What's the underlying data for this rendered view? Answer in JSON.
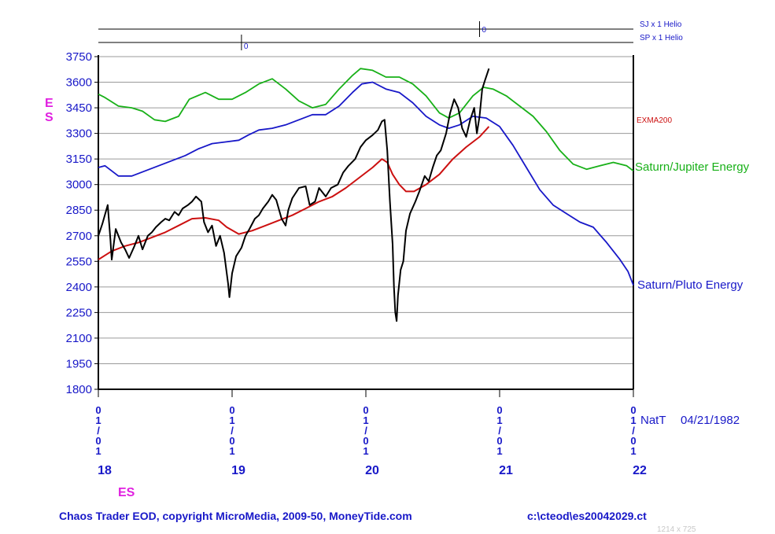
{
  "chart_data": {
    "type": "line",
    "y_axis_label": "ES",
    "x_axis_label": "ES",
    "ylim": [
      1800,
      3750
    ],
    "y_ticks": [
      3750,
      3600,
      3450,
      3300,
      3150,
      3000,
      2850,
      2700,
      2550,
      2400,
      2250,
      2100,
      1950,
      1800
    ],
    "x_date_ticks": [
      {
        "x": 2018.0,
        "label": "01/01",
        "year": "18"
      },
      {
        "x": 2019.0,
        "label": "01/01",
        "year": "19"
      },
      {
        "x": 2020.0,
        "label": "01/01",
        "year": "20"
      },
      {
        "x": 2021.0,
        "label": "01/01",
        "year": "21"
      },
      {
        "x": 2022.0,
        "label": "01/01",
        "year": "22"
      }
    ],
    "natal": {
      "label": "NatT",
      "date": "04/21/1982"
    },
    "top_indicators": [
      {
        "label": "SJ x 1 Helio",
        "marker_x": 2020.85,
        "marker_text": "0"
      },
      {
        "label": "SP x 1 Helio",
        "marker_x": 2019.07,
        "marker_text": "0"
      }
    ],
    "series": [
      {
        "name": "ES",
        "color": "#000000",
        "points": [
          [
            2018.0,
            2700
          ],
          [
            2018.03,
            2770
          ],
          [
            2018.07,
            2880
          ],
          [
            2018.09,
            2680
          ],
          [
            2018.1,
            2560
          ],
          [
            2018.13,
            2740
          ],
          [
            2018.17,
            2660
          ],
          [
            2018.2,
            2620
          ],
          [
            2018.23,
            2570
          ],
          [
            2018.27,
            2640
          ],
          [
            2018.3,
            2700
          ],
          [
            2018.33,
            2620
          ],
          [
            2018.37,
            2700
          ],
          [
            2018.4,
            2720
          ],
          [
            2018.43,
            2750
          ],
          [
            2018.47,
            2780
          ],
          [
            2018.5,
            2800
          ],
          [
            2018.53,
            2790
          ],
          [
            2018.57,
            2840
          ],
          [
            2018.6,
            2820
          ],
          [
            2018.63,
            2860
          ],
          [
            2018.67,
            2880
          ],
          [
            2018.7,
            2900
          ],
          [
            2018.73,
            2930
          ],
          [
            2018.77,
            2900
          ],
          [
            2018.79,
            2780
          ],
          [
            2018.82,
            2720
          ],
          [
            2018.85,
            2760
          ],
          [
            2018.88,
            2640
          ],
          [
            2018.91,
            2700
          ],
          [
            2018.94,
            2600
          ],
          [
            2018.97,
            2420
          ],
          [
            2018.98,
            2340
          ],
          [
            2019.0,
            2480
          ],
          [
            2019.03,
            2580
          ],
          [
            2019.07,
            2630
          ],
          [
            2019.1,
            2700
          ],
          [
            2019.13,
            2740
          ],
          [
            2019.17,
            2800
          ],
          [
            2019.2,
            2820
          ],
          [
            2019.23,
            2860
          ],
          [
            2019.27,
            2900
          ],
          [
            2019.3,
            2940
          ],
          [
            2019.33,
            2910
          ],
          [
            2019.37,
            2800
          ],
          [
            2019.4,
            2760
          ],
          [
            2019.42,
            2850
          ],
          [
            2019.45,
            2920
          ],
          [
            2019.5,
            2980
          ],
          [
            2019.55,
            2990
          ],
          [
            2019.58,
            2880
          ],
          [
            2019.62,
            2900
          ],
          [
            2019.65,
            2980
          ],
          [
            2019.7,
            2930
          ],
          [
            2019.74,
            2980
          ],
          [
            2019.79,
            3000
          ],
          [
            2019.83,
            3070
          ],
          [
            2019.87,
            3110
          ],
          [
            2019.92,
            3150
          ],
          [
            2019.96,
            3220
          ],
          [
            2020.0,
            3260
          ],
          [
            2020.05,
            3290
          ],
          [
            2020.09,
            3320
          ],
          [
            2020.12,
            3370
          ],
          [
            2020.14,
            3380
          ],
          [
            2020.16,
            3200
          ],
          [
            2020.18,
            2900
          ],
          [
            2020.2,
            2650
          ],
          [
            2020.21,
            2400
          ],
          [
            2020.22,
            2250
          ],
          [
            2020.23,
            2200
          ],
          [
            2020.24,
            2350
          ],
          [
            2020.26,
            2500
          ],
          [
            2020.28,
            2550
          ],
          [
            2020.3,
            2730
          ],
          [
            2020.33,
            2830
          ],
          [
            2020.37,
            2900
          ],
          [
            2020.4,
            2960
          ],
          [
            2020.44,
            3050
          ],
          [
            2020.47,
            3020
          ],
          [
            2020.5,
            3100
          ],
          [
            2020.53,
            3170
          ],
          [
            2020.56,
            3200
          ],
          [
            2020.6,
            3300
          ],
          [
            2020.63,
            3420
          ],
          [
            2020.66,
            3500
          ],
          [
            2020.69,
            3450
          ],
          [
            2020.72,
            3330
          ],
          [
            2020.75,
            3280
          ],
          [
            2020.78,
            3380
          ],
          [
            2020.81,
            3450
          ],
          [
            2020.83,
            3300
          ],
          [
            2020.85,
            3400
          ],
          [
            2020.87,
            3560
          ],
          [
            2020.89,
            3610
          ],
          [
            2020.92,
            3680
          ]
        ]
      },
      {
        "name": "EXMA200",
        "color": "#cc1010",
        "points": [
          [
            2018.0,
            2560
          ],
          [
            2018.1,
            2610
          ],
          [
            2018.2,
            2640
          ],
          [
            2018.3,
            2660
          ],
          [
            2018.4,
            2690
          ],
          [
            2018.5,
            2720
          ],
          [
            2018.6,
            2760
          ],
          [
            2018.7,
            2800
          ],
          [
            2018.8,
            2805
          ],
          [
            2018.9,
            2790
          ],
          [
            2018.96,
            2750
          ],
          [
            2019.05,
            2710
          ],
          [
            2019.15,
            2730
          ],
          [
            2019.25,
            2760
          ],
          [
            2019.35,
            2790
          ],
          [
            2019.45,
            2820
          ],
          [
            2019.55,
            2860
          ],
          [
            2019.65,
            2900
          ],
          [
            2019.75,
            2930
          ],
          [
            2019.85,
            2980
          ],
          [
            2019.95,
            3040
          ],
          [
            2020.05,
            3100
          ],
          [
            2020.12,
            3150
          ],
          [
            2020.16,
            3130
          ],
          [
            2020.2,
            3060
          ],
          [
            2020.25,
            3000
          ],
          [
            2020.3,
            2960
          ],
          [
            2020.36,
            2960
          ],
          [
            2020.45,
            3000
          ],
          [
            2020.55,
            3060
          ],
          [
            2020.65,
            3150
          ],
          [
            2020.75,
            3220
          ],
          [
            2020.85,
            3280
          ],
          [
            2020.92,
            3340
          ]
        ]
      },
      {
        "name": "Saturn/Jupiter Energy",
        "color": "#18b018",
        "points": [
          [
            2018.0,
            3530
          ],
          [
            2018.05,
            3510
          ],
          [
            2018.15,
            3460
          ],
          [
            2018.25,
            3450
          ],
          [
            2018.33,
            3430
          ],
          [
            2018.42,
            3380
          ],
          [
            2018.5,
            3370
          ],
          [
            2018.6,
            3400
          ],
          [
            2018.68,
            3500
          ],
          [
            2018.8,
            3540
          ],
          [
            2018.9,
            3500
          ],
          [
            2019.0,
            3500
          ],
          [
            2019.1,
            3540
          ],
          [
            2019.2,
            3590
          ],
          [
            2019.3,
            3620
          ],
          [
            2019.4,
            3560
          ],
          [
            2019.5,
            3490
          ],
          [
            2019.6,
            3450
          ],
          [
            2019.7,
            3470
          ],
          [
            2019.8,
            3560
          ],
          [
            2019.9,
            3640
          ],
          [
            2019.96,
            3680
          ],
          [
            2020.05,
            3670
          ],
          [
            2020.15,
            3630
          ],
          [
            2020.25,
            3630
          ],
          [
            2020.35,
            3590
          ],
          [
            2020.45,
            3520
          ],
          [
            2020.55,
            3420
          ],
          [
            2020.62,
            3390
          ],
          [
            2020.7,
            3420
          ],
          [
            2020.8,
            3520
          ],
          [
            2020.88,
            3570
          ],
          [
            2020.95,
            3560
          ],
          [
            2021.05,
            3520
          ],
          [
            2021.15,
            3460
          ],
          [
            2021.25,
            3400
          ],
          [
            2021.35,
            3310
          ],
          [
            2021.45,
            3200
          ],
          [
            2021.55,
            3120
          ],
          [
            2021.65,
            3090
          ],
          [
            2021.75,
            3110
          ],
          [
            2021.85,
            3130
          ],
          [
            2021.95,
            3110
          ],
          [
            2022.0,
            3080
          ]
        ]
      },
      {
        "name": "Saturn/Pluto Energy",
        "color": "#1818c8",
        "points": [
          [
            2018.0,
            3100
          ],
          [
            2018.05,
            3110
          ],
          [
            2018.1,
            3080
          ],
          [
            2018.15,
            3050
          ],
          [
            2018.25,
            3050
          ],
          [
            2018.35,
            3080
          ],
          [
            2018.45,
            3110
          ],
          [
            2018.55,
            3140
          ],
          [
            2018.65,
            3170
          ],
          [
            2018.75,
            3210
          ],
          [
            2018.85,
            3240
          ],
          [
            2018.95,
            3250
          ],
          [
            2019.05,
            3260
          ],
          [
            2019.12,
            3290
          ],
          [
            2019.2,
            3320
          ],
          [
            2019.3,
            3330
          ],
          [
            2019.4,
            3350
          ],
          [
            2019.5,
            3380
          ],
          [
            2019.6,
            3410
          ],
          [
            2019.7,
            3410
          ],
          [
            2019.8,
            3460
          ],
          [
            2019.9,
            3540
          ],
          [
            2019.97,
            3590
          ],
          [
            2020.05,
            3600
          ],
          [
            2020.15,
            3560
          ],
          [
            2020.25,
            3540
          ],
          [
            2020.35,
            3480
          ],
          [
            2020.45,
            3400
          ],
          [
            2020.55,
            3350
          ],
          [
            2020.62,
            3330
          ],
          [
            2020.7,
            3350
          ],
          [
            2020.8,
            3400
          ],
          [
            2020.9,
            3390
          ],
          [
            2021.0,
            3340
          ],
          [
            2021.1,
            3230
          ],
          [
            2021.2,
            3100
          ],
          [
            2021.3,
            2970
          ],
          [
            2021.4,
            2880
          ],
          [
            2021.5,
            2830
          ],
          [
            2021.6,
            2780
          ],
          [
            2021.7,
            2750
          ],
          [
            2021.8,
            2660
          ],
          [
            2021.9,
            2560
          ],
          [
            2021.96,
            2490
          ],
          [
            2022.0,
            2410
          ]
        ]
      }
    ],
    "series_labels": {
      "exma": "EXMA200",
      "sj": "Saturn/Jupiter Energy",
      "sp": "Saturn/Pluto Energy"
    }
  },
  "footer": {
    "left": "Chaos Trader EOD, copyright MicroMedia, 2009-50, MoneyTide.com",
    "right": "c:\\cteod\\es20042029.ct",
    "dims": "1214 x 725"
  }
}
